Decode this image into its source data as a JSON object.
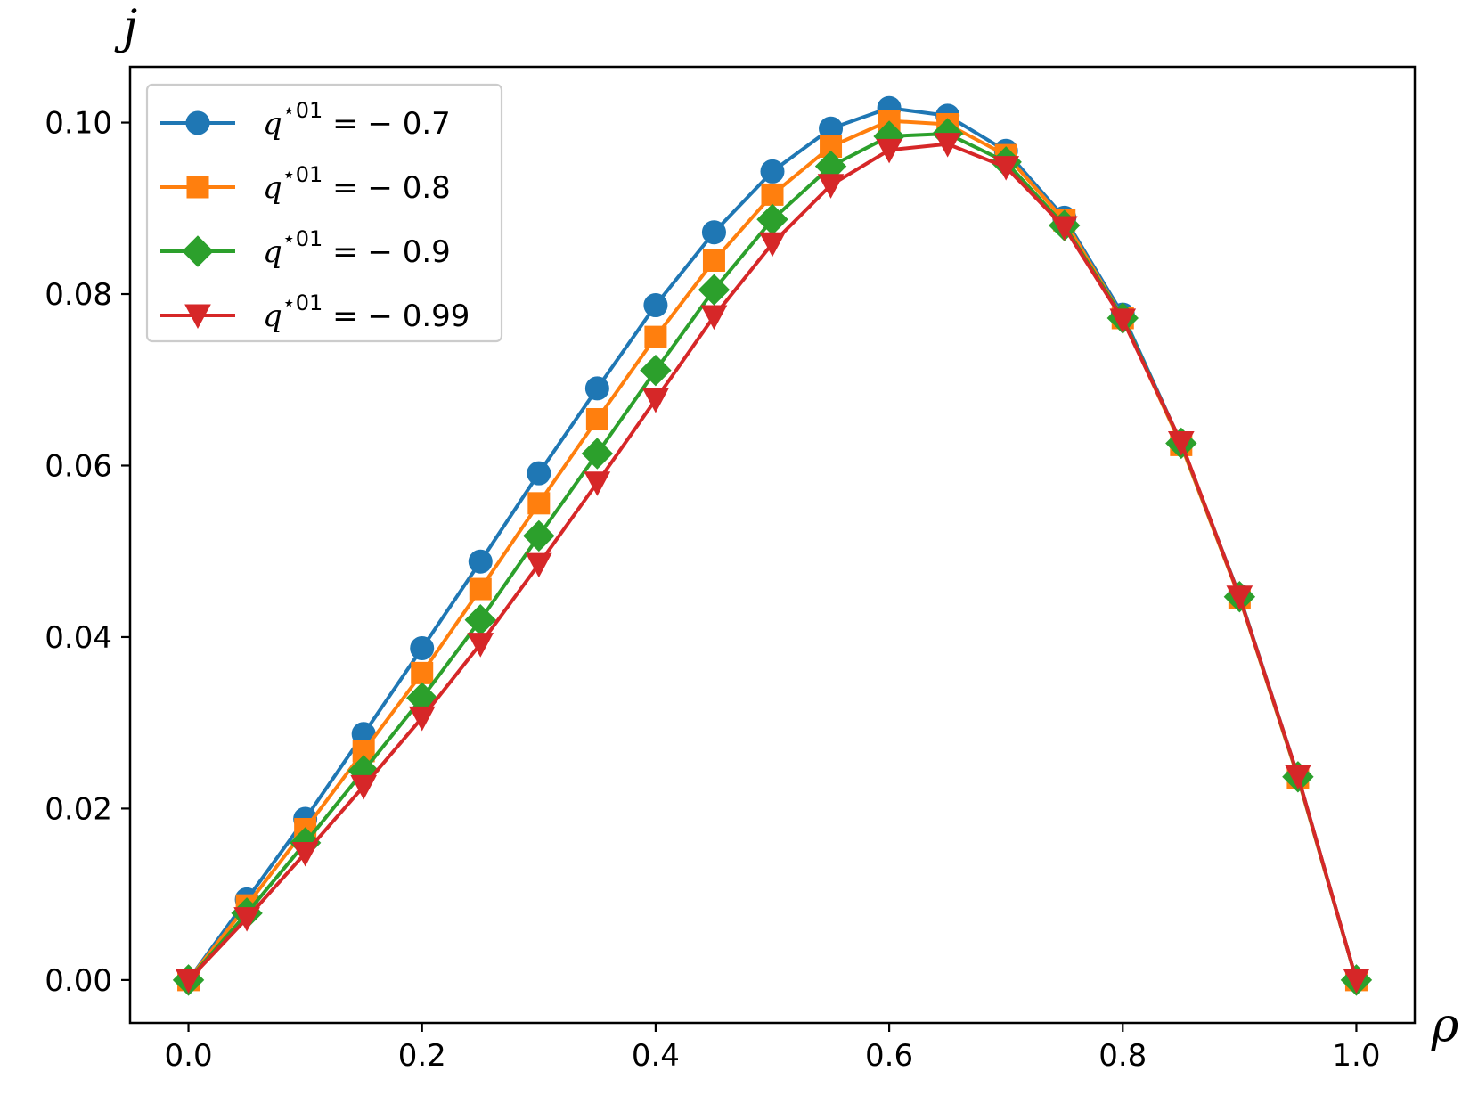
{
  "chart_data": {
    "type": "line",
    "xlabel": "ρ",
    "ylabel": "j",
    "xlim": [
      -0.05,
      1.05
    ],
    "ylim": [
      -0.005,
      0.1065
    ],
    "xticks": [
      "0.0",
      "0.2",
      "0.4",
      "0.6",
      "0.8",
      "1.0"
    ],
    "yticks": [
      "0.00",
      "0.02",
      "0.04",
      "0.06",
      "0.08",
      "0.10"
    ],
    "grid": false,
    "legend_position": "top-left",
    "x": [
      0.0,
      0.05,
      0.1,
      0.15,
      0.2,
      0.25,
      0.3,
      0.35,
      0.4,
      0.45,
      0.5,
      0.55,
      0.6,
      0.65,
      0.7,
      0.75,
      0.8,
      0.85,
      0.9,
      0.95,
      1.0
    ],
    "series": [
      {
        "legend_var": "q",
        "legend_sup": "⋆01",
        "legend_rest": " = − 0.7",
        "color": "#1f77b4",
        "marker": "circle",
        "values": [
          0.0,
          0.0094,
          0.0188,
          0.0287,
          0.0387,
          0.0488,
          0.0591,
          0.069,
          0.0787,
          0.0872,
          0.0943,
          0.0993,
          0.1017,
          0.1008,
          0.0967,
          0.0889,
          0.0776,
          0.0626,
          0.0448,
          0.0238,
          0.0
        ]
      },
      {
        "legend_var": "q",
        "legend_sup": "⋆01",
        "legend_rest": " = − 0.8",
        "color": "#ff7f0e",
        "marker": "square",
        "values": [
          0.0,
          0.0087,
          0.0176,
          0.0267,
          0.0358,
          0.0456,
          0.0556,
          0.0654,
          0.075,
          0.0839,
          0.0916,
          0.0972,
          0.1002,
          0.0998,
          0.0962,
          0.0886,
          0.0772,
          0.0624,
          0.0446,
          0.0236,
          0.0
        ]
      },
      {
        "legend_var": "q",
        "legend_sup": "⋆01",
        "legend_rest": " = − 0.9",
        "color": "#2ca02c",
        "marker": "diamond",
        "values": [
          0.0,
          0.0078,
          0.016,
          0.0244,
          0.0329,
          0.042,
          0.0518,
          0.0614,
          0.0711,
          0.0805,
          0.0887,
          0.0949,
          0.0984,
          0.0987,
          0.0954,
          0.088,
          0.0772,
          0.0626,
          0.0447,
          0.0237,
          0.0
        ]
      },
      {
        "legend_var": "q",
        "legend_sup": "⋆01",
        "legend_rest": " = − 0.99",
        "color": "#d62728",
        "marker": "triangle-down",
        "values": [
          0.0,
          0.0072,
          0.0148,
          0.0226,
          0.0306,
          0.0392,
          0.0485,
          0.058,
          0.0677,
          0.0774,
          0.0859,
          0.0927,
          0.0968,
          0.0975,
          0.0948,
          0.0878,
          0.077,
          0.0627,
          0.0447,
          0.0238,
          0.0
        ]
      }
    ]
  }
}
